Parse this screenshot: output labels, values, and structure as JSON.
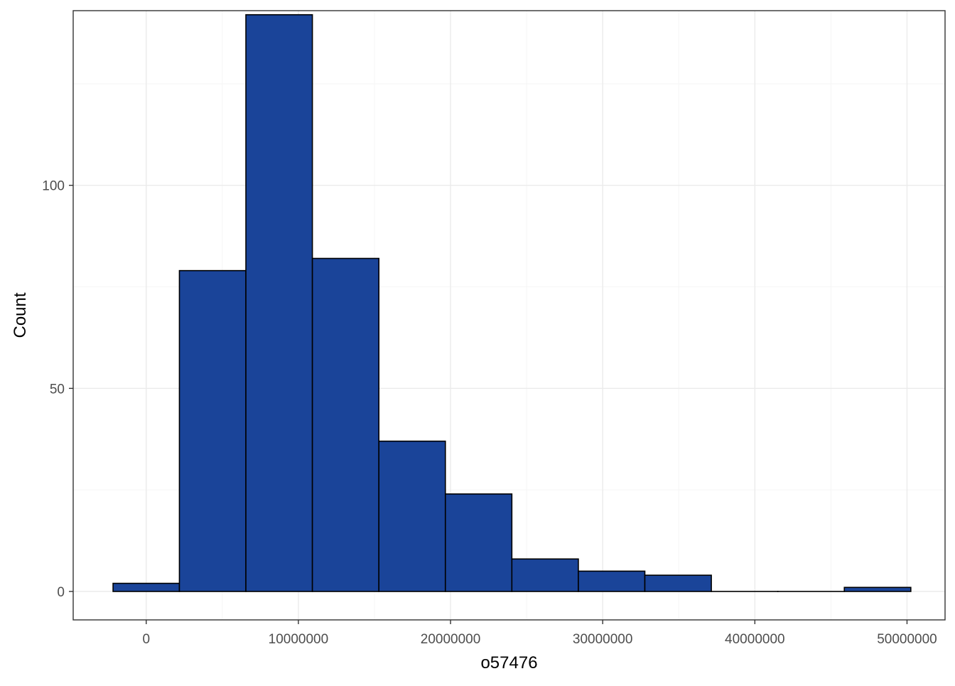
{
  "chart_data": {
    "type": "bar",
    "title": "",
    "xlabel": "o57476",
    "ylabel": "Count",
    "xlim": [
      -4800000,
      52500000
    ],
    "ylim": [
      -7,
      143
    ],
    "x_ticks": [
      0,
      10000000,
      20000000,
      30000000,
      40000000,
      50000000
    ],
    "x_tick_labels": [
      "0",
      "10000000",
      "20000000",
      "30000000",
      "40000000",
      "50000000"
    ],
    "y_ticks": [
      0,
      50,
      100
    ],
    "y_tick_labels": [
      "0",
      "50",
      "100"
    ],
    "bins": [
      {
        "x0": -2180000,
        "x1": 2180000,
        "count": 2
      },
      {
        "x0": 2180000,
        "x1": 6550000,
        "count": 79
      },
      {
        "x0": 6550000,
        "x1": 10920000,
        "count": 142
      },
      {
        "x0": 10920000,
        "x1": 15290000,
        "count": 82
      },
      {
        "x0": 15290000,
        "x1": 19660000,
        "count": 37
      },
      {
        "x0": 19660000,
        "x1": 24030000,
        "count": 24
      },
      {
        "x0": 24030000,
        "x1": 28400000,
        "count": 8
      },
      {
        "x0": 28400000,
        "x1": 32770000,
        "count": 5
      },
      {
        "x0": 32770000,
        "x1": 37140000,
        "count": 4
      },
      {
        "x0": 37140000,
        "x1": 41510000,
        "count": 0
      },
      {
        "x0": 41510000,
        "x1": 45880000,
        "count": 0
      },
      {
        "x0": 45880000,
        "x1": 50250000,
        "count": 1
      }
    ],
    "bar_fill": "#1a4499",
    "bar_stroke": "#000000",
    "panel_border": "#333333",
    "grid_major": "#ebebeb",
    "grid_minor": "#f5f5f5",
    "grid": true,
    "legend": "none"
  }
}
